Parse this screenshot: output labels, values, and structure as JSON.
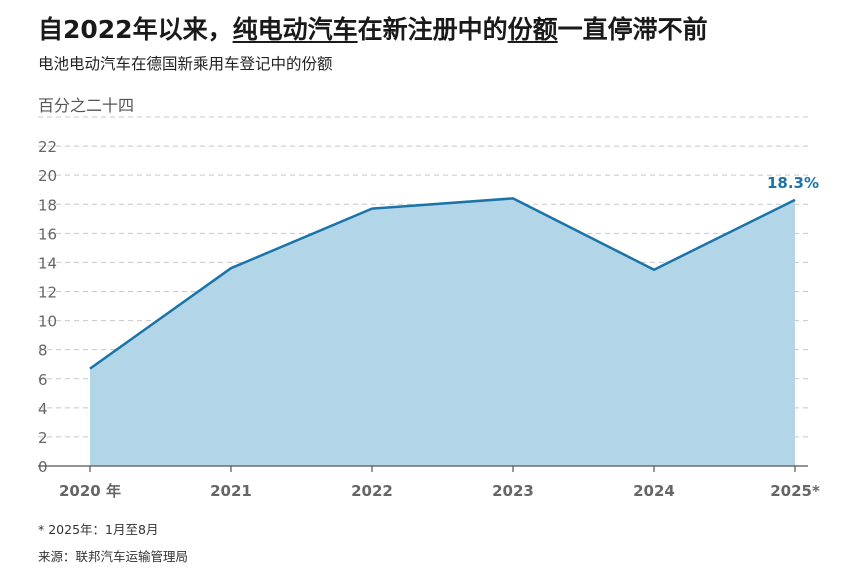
{
  "header": {
    "title_part1": "自2022年以来，",
    "title_underlined": "纯电动汽车",
    "title_part2": "在新注册中的",
    "title_underlined2": "份额",
    "title_part3": "一直停滞不前",
    "subtitle": "电池电动汽车在德国新乘用车登记中的份额"
  },
  "footer": {
    "footnote": "* 2025年：1月至8月",
    "source": "来源：联邦汽车运输管理局"
  },
  "colors": {
    "line": "#1a74a8",
    "area": "#b3d5e8",
    "label": "#1a74a8",
    "grid": "#c8c8c8",
    "tick_text": "#666666"
  },
  "chart_data": {
    "type": "area",
    "unit_label": "百分之二十四",
    "x": [
      "2020 年",
      "2021",
      "2022",
      "2023",
      "2024",
      "2025*"
    ],
    "series": [
      {
        "values": [
          6.7,
          13.6,
          17.7,
          18.4,
          13.5,
          18.3
        ]
      }
    ],
    "y_ticks": [
      0,
      2,
      4,
      6,
      8,
      10,
      12,
      14,
      16,
      18,
      20,
      22
    ],
    "ylim": [
      0,
      24
    ],
    "grid": true,
    "end_label": "18.3%"
  }
}
